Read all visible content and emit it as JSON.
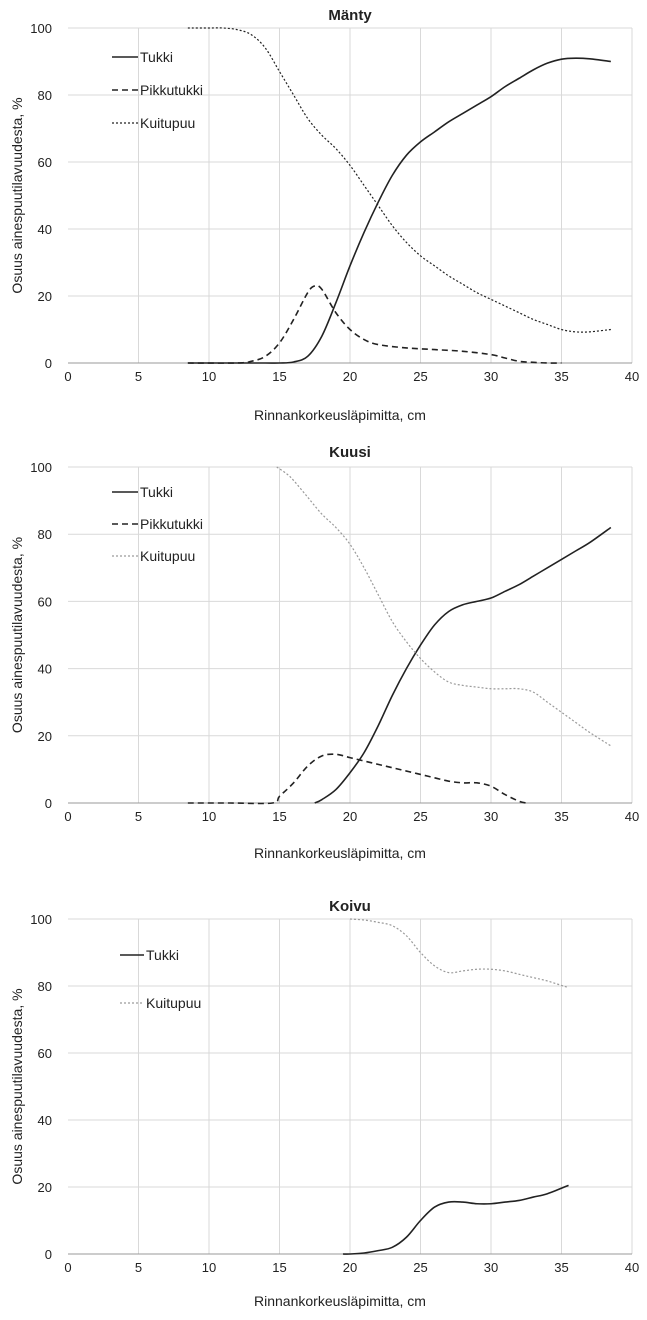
{
  "chart_data": [
    {
      "type": "line",
      "title": "Mänty",
      "xlabel": "Rinnankorkeusläpimitta, cm",
      "ylabel": "Osuus ainespuutilavuudesta, %",
      "xlim": [
        0,
        40
      ],
      "ylim": [
        0,
        100
      ],
      "xticks": [
        0,
        5,
        10,
        15,
        20,
        25,
        30,
        35,
        40
      ],
      "yticks": [
        0,
        20,
        40,
        60,
        80,
        100
      ],
      "grid": true,
      "legend": "top-left",
      "series": [
        {
          "name": "Tukki",
          "style": "solid",
          "color": "#222222",
          "x": [
            8.5,
            12,
            14,
            15,
            16,
            17,
            18,
            19,
            20,
            21,
            22,
            23,
            24,
            25,
            26,
            27,
            28,
            29,
            30,
            31,
            32,
            33,
            34,
            35,
            36,
            37,
            38.5
          ],
          "y": [
            0,
            0,
            0,
            0,
            0.3,
            2,
            8,
            18,
            29,
            39,
            48,
            56,
            62,
            66,
            69,
            72,
            74.5,
            77,
            79.5,
            82.5,
            85,
            87.5,
            89.5,
            90.7,
            91,
            90.8,
            90
          ]
        },
        {
          "name": "Pikkutukki",
          "style": "dashed",
          "color": "#222222",
          "x": [
            8.5,
            12,
            13,
            14,
            15,
            16,
            17,
            17.5,
            18,
            19,
            20,
            21,
            22,
            24,
            26,
            28,
            30,
            31,
            32,
            33,
            34,
            35
          ],
          "y": [
            0,
            0,
            0.5,
            2,
            6,
            13,
            21,
            23,
            22,
            15,
            10,
            7,
            5.5,
            4.5,
            4,
            3.5,
            2.5,
            1.5,
            0.5,
            0.2,
            0,
            0
          ]
        },
        {
          "name": "Kuitupuu",
          "style": "dotted",
          "color": "#222222",
          "x": [
            8.5,
            10,
            11,
            12,
            13,
            14,
            15,
            16,
            17,
            18,
            19,
            20,
            21,
            22,
            23,
            24,
            25,
            26,
            27,
            28,
            29,
            30,
            31,
            32,
            33,
            34,
            35,
            36,
            37,
            38.5
          ],
          "y": [
            100,
            100,
            100,
            99.5,
            98,
            94,
            87,
            80,
            73,
            68,
            64,
            59,
            53,
            47,
            41,
            36,
            32,
            29,
            26,
            23.5,
            21,
            19,
            17,
            15,
            13,
            11.5,
            10,
            9.3,
            9.3,
            10
          ]
        }
      ]
    },
    {
      "type": "line",
      "title": "Kuusi",
      "xlabel": "Rinnankorkeusläpimitta, cm",
      "ylabel": "Osuus ainespuutilavuudesta, %",
      "xlim": [
        0,
        40
      ],
      "ylim": [
        0,
        100
      ],
      "xticks": [
        0,
        5,
        10,
        15,
        20,
        25,
        30,
        35,
        40
      ],
      "yticks": [
        0,
        20,
        40,
        60,
        80,
        100
      ],
      "grid": true,
      "legend": "top-left",
      "series": [
        {
          "name": "Tukki",
          "style": "solid",
          "color": "#222222",
          "x": [
            17.5,
            18,
            19,
            20,
            21,
            22,
            23,
            24,
            25,
            26,
            27,
            28,
            29,
            30,
            31,
            32,
            33,
            34,
            35,
            36,
            37,
            38.5
          ],
          "y": [
            0,
            1,
            4,
            9,
            15,
            23,
            32,
            40,
            47,
            53,
            57,
            59,
            60,
            61,
            63,
            65,
            67.5,
            70,
            72.5,
            75,
            77.5,
            82
          ]
        },
        {
          "name": "Pikkutukki",
          "style": "dashed",
          "color": "#222222",
          "x": [
            8.5,
            11.5,
            14.5,
            15,
            16,
            17,
            18,
            19,
            20,
            21,
            22,
            23,
            24,
            25,
            26,
            27,
            28,
            29,
            30,
            31,
            32,
            32.5
          ],
          "y": [
            0,
            0,
            0,
            2,
            6,
            11,
            14,
            14.5,
            13.5,
            12.5,
            11.5,
            10.5,
            9.5,
            8.5,
            7.5,
            6.5,
            6,
            6,
            5,
            2.5,
            0.5,
            0
          ]
        },
        {
          "name": "Kuitupuu",
          "style": "dotted",
          "color": "#9a9a9a",
          "x": [
            14.8,
            15.5,
            16,
            17,
            18,
            19,
            20,
            21,
            22,
            23,
            24,
            25,
            26,
            27,
            28,
            29,
            30,
            31,
            32,
            33,
            34,
            35,
            36,
            37,
            38.5
          ],
          "y": [
            100,
            98,
            96,
            91,
            86,
            82,
            77,
            70,
            62,
            54,
            48,
            43,
            39,
            36,
            35,
            34.5,
            34,
            34,
            34,
            33,
            30,
            27,
            24,
            21,
            17
          ]
        }
      ]
    },
    {
      "type": "line",
      "title": "Koivu",
      "xlabel": "Rinnankorkeusläpimitta, cm",
      "ylabel": "Osuus ainespuutilavuudesta, %",
      "xlim": [
        0,
        40
      ],
      "ylim": [
        0,
        100
      ],
      "xticks": [
        0,
        5,
        10,
        15,
        20,
        25,
        30,
        35,
        40
      ],
      "yticks": [
        0,
        20,
        40,
        60,
        80,
        100
      ],
      "grid": true,
      "legend": "top-left",
      "series": [
        {
          "name": "Tukki",
          "style": "solid",
          "color": "#222222",
          "x": [
            19.5,
            20,
            21,
            22,
            23,
            24,
            25,
            26,
            27,
            28,
            29,
            30,
            31,
            32,
            33,
            34,
            35.5
          ],
          "y": [
            0,
            0,
            0.3,
            1,
            2,
            5,
            10,
            14,
            15.5,
            15.5,
            15,
            15,
            15.5,
            16,
            17,
            18,
            20.5
          ]
        },
        {
          "name": "Kuitupuu",
          "style": "dotted",
          "color": "#9a9a9a",
          "x": [
            20,
            21,
            22,
            23,
            24,
            25,
            26,
            27,
            28,
            29,
            30,
            31,
            32,
            33,
            34,
            35.5
          ],
          "y": [
            100,
            99.7,
            99,
            98,
            95,
            90,
            86,
            84,
            84.5,
            85,
            85,
            84.5,
            83.5,
            82.5,
            81.5,
            79.5
          ]
        }
      ]
    }
  ]
}
